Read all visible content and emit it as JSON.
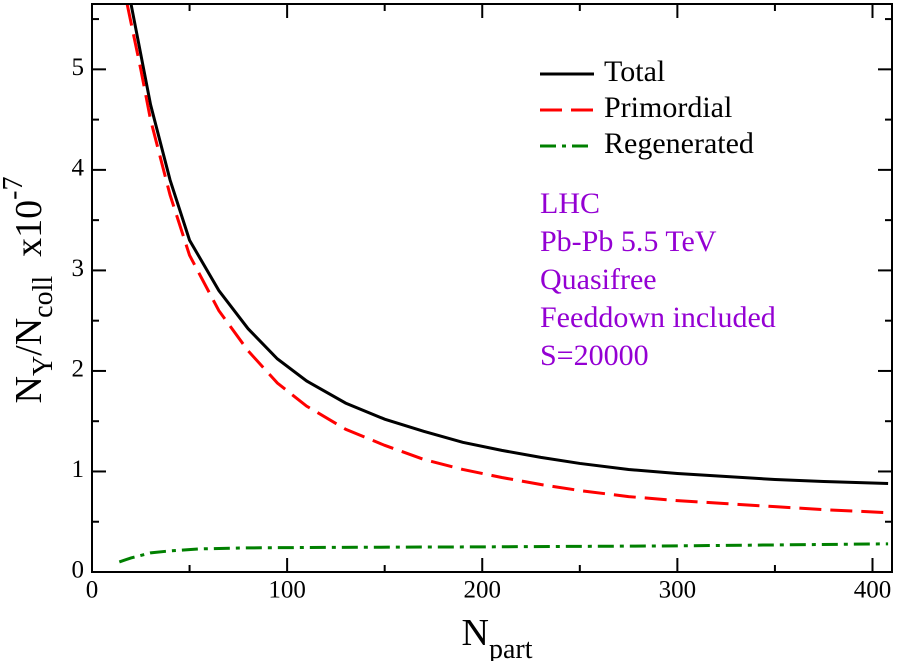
{
  "chart_data": {
    "type": "line",
    "xlabel": [
      "N",
      "part"
    ],
    "ylabel": [
      "N",
      "Y",
      "/N",
      "coll",
      "  x10",
      "-7"
    ],
    "xlim": [
      0,
      410
    ],
    "xticks": [
      0,
      100,
      200,
      300,
      400
    ],
    "xminorticks": [
      50,
      150,
      250,
      350
    ],
    "ylim": [
      0,
      5.65
    ],
    "yticks": [
      0,
      1,
      2,
      3,
      4,
      5
    ],
    "yminorticks": [
      0.5,
      1.5,
      2.5,
      3.5,
      4.5,
      5.5
    ],
    "legend": "upper right",
    "annotations": [
      "LHC",
      "Pb-Pb 5.5 TeV",
      "Quasifree",
      "Feeddown included",
      "S=20000"
    ],
    "annotation_color": "#9400d3",
    "series": [
      {
        "name": "Total",
        "color": "#000000",
        "dash": "solid",
        "x": [
          20,
          30,
          40,
          50,
          65,
          80,
          95,
          110,
          130,
          150,
          170,
          190,
          210,
          230,
          250,
          275,
          300,
          325,
          350,
          375,
          408
        ],
        "values": [
          5.65,
          4.65,
          3.9,
          3.3,
          2.8,
          2.42,
          2.12,
          1.9,
          1.68,
          1.52,
          1.4,
          1.29,
          1.21,
          1.14,
          1.08,
          1.02,
          0.98,
          0.95,
          0.92,
          0.9,
          0.88
        ]
      },
      {
        "name": "Primordial",
        "color": "#ff0000",
        "dash": "dashed",
        "x": [
          18,
          25,
          30,
          40,
          50,
          65,
          80,
          95,
          110,
          130,
          150,
          170,
          190,
          210,
          230,
          250,
          275,
          300,
          325,
          350,
          375,
          408
        ],
        "values": [
          5.65,
          5.0,
          4.5,
          3.75,
          3.15,
          2.6,
          2.2,
          1.88,
          1.65,
          1.42,
          1.26,
          1.12,
          1.02,
          0.94,
          0.87,
          0.81,
          0.75,
          0.71,
          0.68,
          0.65,
          0.62,
          0.59
        ]
      },
      {
        "name": "Regenerated",
        "color": "#008000",
        "dash": "dashdot",
        "x": [
          14,
          20,
          30,
          40,
          55,
          80,
          120,
          200,
          300,
          408
        ],
        "values": [
          0.1,
          0.14,
          0.19,
          0.21,
          0.23,
          0.24,
          0.245,
          0.25,
          0.26,
          0.28
        ]
      }
    ]
  }
}
